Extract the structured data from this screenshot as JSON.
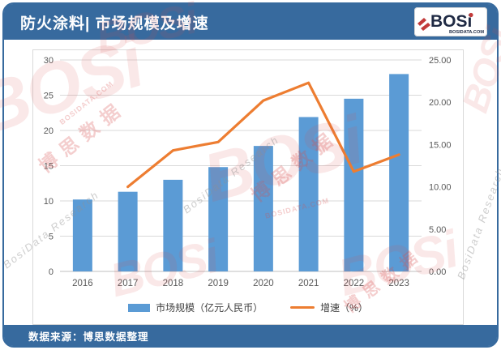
{
  "header": {
    "title": "防火涂料| 市场规模及增速",
    "logo": {
      "text": "BOSi",
      "domain": "BOSIDATA.COM"
    }
  },
  "chart_data": {
    "type": "bar",
    "title": "防火涂料| 市场规模及增速",
    "categories": [
      "2016",
      "2017",
      "2018",
      "2019",
      "2020",
      "2021",
      "2022",
      "2023"
    ],
    "series": [
      {
        "name": "市场规模（亿元人民币）",
        "type": "bar",
        "axis": "left",
        "color": "#5B9BD5",
        "values": [
          10.2,
          11.3,
          13.0,
          14.8,
          17.8,
          21.9,
          24.5,
          28.0
        ]
      },
      {
        "name": "增速（%）",
        "type": "line",
        "axis": "right",
        "color": "#ED7D31",
        "values": [
          null,
          10.0,
          14.3,
          15.3,
          20.2,
          22.3,
          11.8,
          13.8
        ]
      }
    ],
    "left_axis": {
      "min": 0,
      "max": 30,
      "step": 5,
      "tick_labels": [
        "0",
        "5",
        "10",
        "15",
        "20",
        "25",
        "30"
      ]
    },
    "right_axis": {
      "min": 0,
      "max": 25,
      "step": 5,
      "tick_labels": [
        "0.00",
        "5.00",
        "10.00",
        "15.00",
        "20.00",
        "25.00"
      ]
    },
    "grid": true,
    "legend_position": "bottom"
  },
  "footer": {
    "source": "数据来源：博思数据整理"
  },
  "watermarks": {
    "logo": "BOSi",
    "cn": "博思数据",
    "en": "BosiData Research",
    "domain": "BOSIDATA.COM"
  },
  "colors": {
    "header_blue": "#376A9E",
    "bar_blue": "#5B9BD5",
    "line_orange": "#ED7D31",
    "logo_navy": "#1F2A44",
    "logo_red": "#C23A3A",
    "axis_text": "#595959",
    "gridline": "#D9D9D9"
  }
}
